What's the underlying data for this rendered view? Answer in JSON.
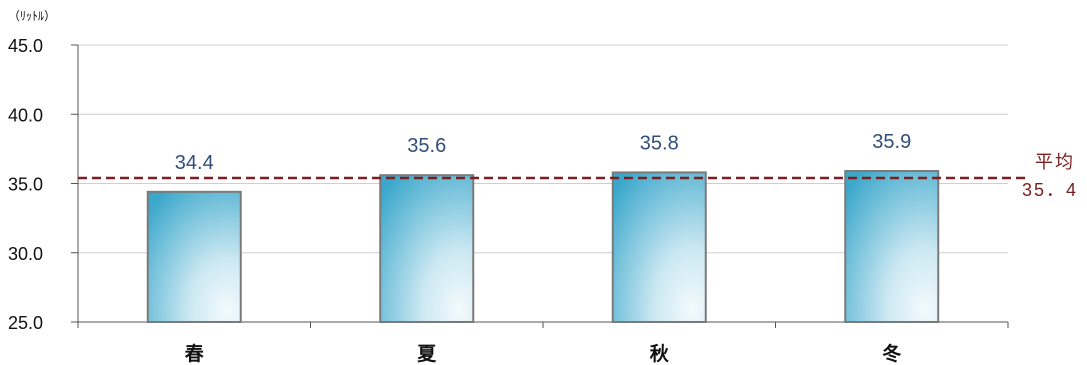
{
  "chart_data": {
    "type": "bar",
    "categories": [
      "春",
      "夏",
      "秋",
      "冬"
    ],
    "values": [
      34.4,
      35.6,
      35.8,
      35.9
    ],
    "value_labels": [
      "34.4",
      "35.6",
      "35.8",
      "35.9"
    ],
    "ylim": [
      25,
      45
    ],
    "yticks": [
      "25.0",
      "30.0",
      "35.0",
      "40.0",
      "45.0"
    ],
    "ylabel": "（ﾘｯﾄﾙ）",
    "average": {
      "value": 35.4,
      "label_line1": "平均",
      "label_line2": "35．4",
      "color": "#7b2020"
    },
    "grid": true,
    "legend": "none",
    "bar_color_start": "#45aecf",
    "bar_color_end": "#e9f5fa"
  }
}
